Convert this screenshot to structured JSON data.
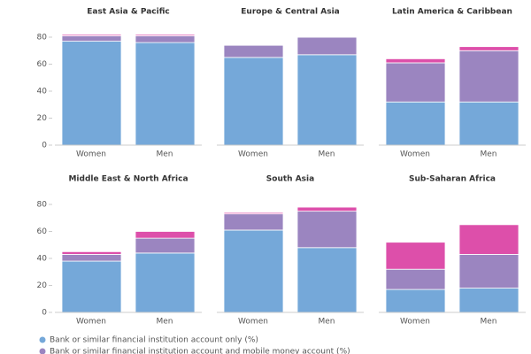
{
  "chart_data": [
    {
      "type": "stacked-bar",
      "title": "East Asia & Pacific",
      "categories": [
        "Women",
        "Men"
      ],
      "series": [
        {
          "name": "Bank or similar financial institution account only (%)",
          "color": "#75a8d9",
          "values": [
            77,
            76
          ]
        },
        {
          "name": "Bank or similar financial institution account and mobile money account (%)",
          "color": "#9b85c0",
          "values": [
            4,
            5
          ]
        },
        {
          "color": "#dd4faa",
          "values": [
            1,
            1
          ]
        }
      ],
      "ylim": [
        0,
        85
      ],
      "yticks": [
        0,
        20,
        40,
        60,
        80
      ]
    },
    {
      "type": "stacked-bar",
      "title": "Europe & Central Asia",
      "categories": [
        "Women",
        "Men"
      ],
      "series": [
        {
          "color": "#75a8d9",
          "values": [
            65,
            67
          ]
        },
        {
          "color": "#9b85c0",
          "values": [
            9,
            13
          ]
        },
        {
          "color": "#dd4faa",
          "values": [
            0.3,
            0.5
          ]
        }
      ],
      "ylim": [
        0,
        85
      ]
    },
    {
      "type": "stacked-bar",
      "title": "Latin America & Caribbean",
      "categories": [
        "Women",
        "Men"
      ],
      "series": [
        {
          "color": "#75a8d9",
          "values": [
            32,
            32
          ]
        },
        {
          "color": "#9b85c0",
          "values": [
            29,
            38
          ]
        },
        {
          "color": "#dd4faa",
          "values": [
            3,
            3
          ]
        }
      ],
      "ylim": [
        0,
        85
      ]
    },
    {
      "type": "stacked-bar",
      "title": "Middle East & North Africa",
      "categories": [
        "Women",
        "Men"
      ],
      "series": [
        {
          "color": "#75a8d9",
          "values": [
            38,
            44
          ]
        },
        {
          "color": "#9b85c0",
          "values": [
            5,
            11
          ]
        },
        {
          "color": "#dd4faa",
          "values": [
            2,
            5
          ]
        }
      ],
      "ylim": [
        0,
        85
      ],
      "yticks": [
        0,
        20,
        40,
        60,
        80
      ]
    },
    {
      "type": "stacked-bar",
      "title": "South Asia",
      "categories": [
        "Women",
        "Men"
      ],
      "series": [
        {
          "color": "#75a8d9",
          "values": [
            61,
            48
          ]
        },
        {
          "color": "#9b85c0",
          "values": [
            12,
            27
          ]
        },
        {
          "color": "#dd4faa",
          "values": [
            1,
            3
          ]
        }
      ],
      "ylim": [
        0,
        85
      ]
    },
    {
      "type": "stacked-bar",
      "title": "Sub-Saharan Africa",
      "categories": [
        "Women",
        "Men"
      ],
      "series": [
        {
          "color": "#75a8d9",
          "values": [
            17,
            18
          ]
        },
        {
          "color": "#9b85c0",
          "values": [
            15,
            25
          ]
        },
        {
          "color": "#dd4faa",
          "values": [
            20,
            22
          ]
        }
      ],
      "ylim": [
        0,
        85
      ]
    }
  ]
}
